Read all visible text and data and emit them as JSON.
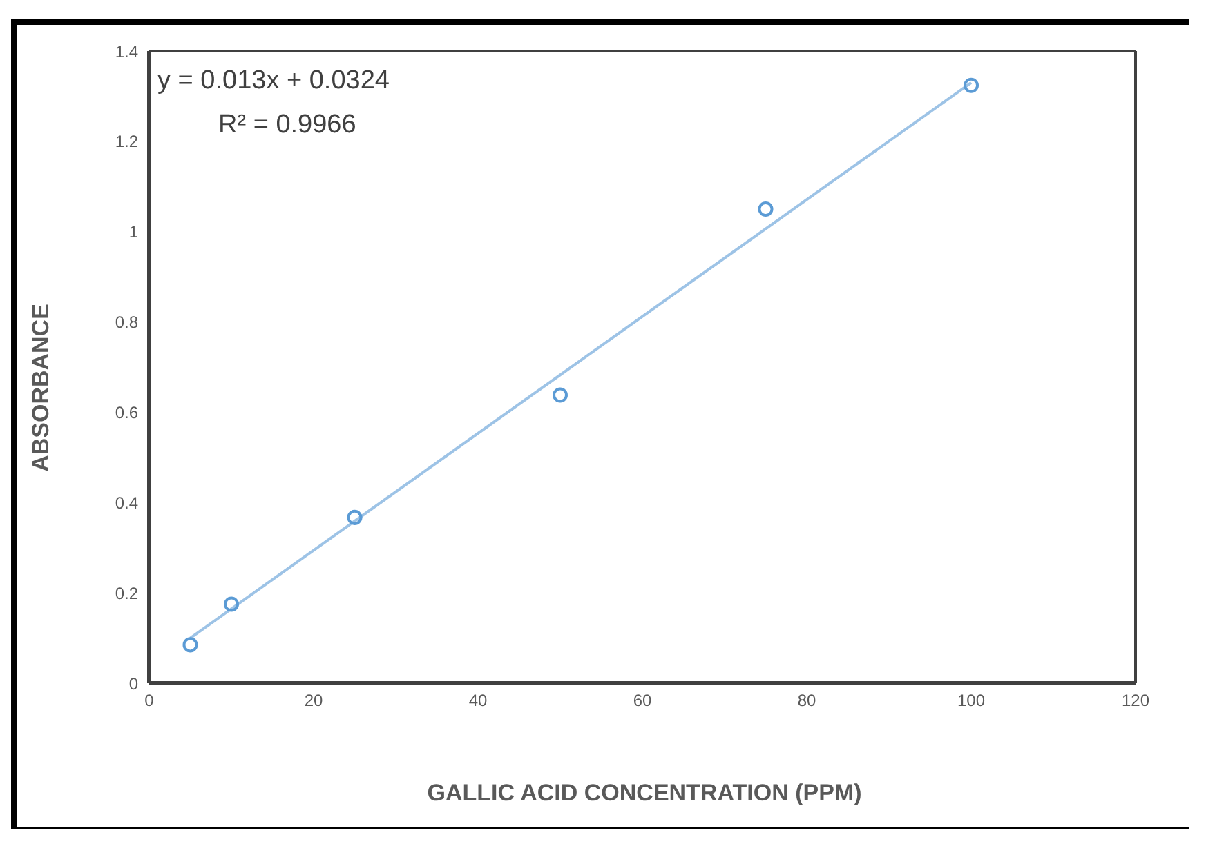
{
  "chart_data": {
    "type": "scatter",
    "xlabel": "GALLIC ACID CONCENTRATION (PPM)",
    "ylabel": "ABSORBANCE",
    "x": [
      5,
      10,
      25,
      50,
      75,
      100
    ],
    "series": [
      {
        "color": "#5b9bd5",
        "values": [
          0.085,
          0.175,
          0.367,
          0.638,
          1.05,
          1.324
        ]
      },
      {
        "type": "line",
        "color": "#9dc3e6",
        "marker": "none",
        "x": [
          5,
          100
        ],
        "values": [
          0.1,
          1.33
        ]
      }
    ],
    "annotations": [
      "y = 0.013x + 0.0324",
      "R² = 0.9966"
    ],
    "xlim": [
      0,
      120
    ],
    "xticks": [
      0,
      20,
      40,
      60,
      80,
      100,
      120
    ],
    "ylim": [
      0,
      1.4
    ],
    "yticks": [
      0,
      0.2,
      0.4,
      0.6,
      0.8,
      1,
      1.2,
      1.4
    ],
    "legend": false,
    "marker": "circle"
  }
}
